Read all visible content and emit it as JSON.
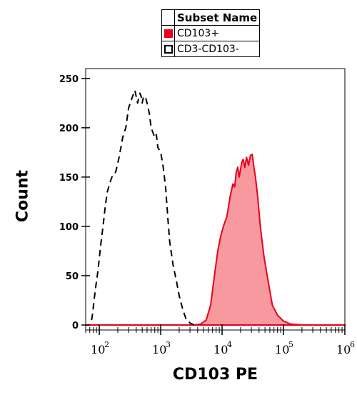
{
  "legend": {
    "header": "Subset Name",
    "items": [
      {
        "label": "CD103+",
        "color": "#e8001c",
        "fill": "#e8001c",
        "border": "#e8001c"
      },
      {
        "label": "CD3-CD103-",
        "color": "#000000",
        "fill": "#ffffff",
        "border": "#000000"
      }
    ]
  },
  "chart_data": {
    "type": "area",
    "xlabel": "CD103 PE",
    "ylabel": "Count",
    "xscale": "log",
    "xlim": [
      60,
      1000000
    ],
    "ylim": [
      0,
      260
    ],
    "yticks": [
      0,
      50,
      100,
      150,
      200,
      250
    ],
    "xticks": [
      {
        "value": 100,
        "base": "10",
        "exp": "2"
      },
      {
        "value": 1000,
        "base": "10",
        "exp": "3"
      },
      {
        "value": 10000,
        "base": "10",
        "exp": "4"
      },
      {
        "value": 100000,
        "base": "10",
        "exp": "5"
      },
      {
        "value": 1000000,
        "base": "10",
        "exp": "6"
      }
    ],
    "grid": false,
    "legend_position": "top-center",
    "series": [
      {
        "name": "CD103+",
        "style": "filled",
        "color": "#e8001c",
        "fill": "#f7868e",
        "x": [
          60,
          3500,
          4500,
          5500,
          6500,
          7500,
          8500,
          9500,
          10500,
          12000,
          13500,
          15000,
          16000,
          17000,
          18000,
          19000,
          20000,
          21000,
          22000,
          23500,
          25000,
          27000,
          29000,
          31000,
          33000,
          35000,
          38000,
          42000,
          48000,
          56000,
          66000,
          80000,
          100000,
          130000,
          200000,
          1000000
        ],
        "y": [
          0,
          0,
          1,
          5,
          20,
          50,
          75,
          90,
          100,
          110,
          130,
          143,
          140,
          155,
          160,
          150,
          158,
          165,
          168,
          160,
          170,
          162,
          172,
          173,
          160,
          150,
          130,
          100,
          70,
          45,
          20,
          10,
          4,
          1,
          0,
          0
        ]
      },
      {
        "name": "CD3-CD103-",
        "style": "dashed",
        "color": "#000000",
        "x": [
          75,
          78,
          82,
          88,
          95,
          105,
          115,
          125,
          135,
          150,
          165,
          185,
          210,
          240,
          270,
          300,
          340,
          380,
          420,
          460,
          480,
          500,
          520,
          560,
          600,
          650,
          700,
          750,
          800,
          850,
          900,
          1000,
          1100,
          1200,
          1300,
          1400,
          1600,
          1800,
          2000,
          2300,
          2600,
          3000,
          3500
        ],
        "y": [
          5,
          12,
          25,
          40,
          55,
          80,
          100,
          120,
          135,
          145,
          152,
          155,
          170,
          190,
          200,
          220,
          230,
          238,
          225,
          235,
          232,
          225,
          230,
          232,
          225,
          215,
          200,
          195,
          190,
          193,
          180,
          175,
          160,
          140,
          110,
          85,
          60,
          45,
          30,
          15,
          6,
          2,
          0
        ]
      }
    ]
  }
}
